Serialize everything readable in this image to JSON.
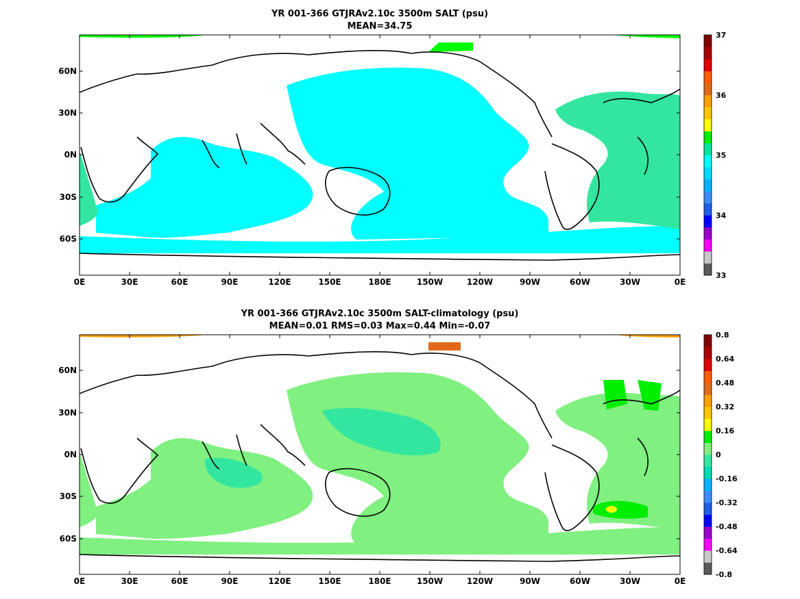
{
  "panels": [
    {
      "title": "YR 001-366 GTJRAv2.10c 3500m SALT (psu)",
      "subtitle": "MEAN=34.75",
      "colorbar": {
        "labels": [
          "37",
          "36",
          "35",
          "34",
          "33"
        ],
        "colors": [
          "#5a5a5a",
          "#c8c8c8",
          "#ff00ff",
          "#9900cc",
          "#0000ff",
          "#1d5fe6",
          "#3c8cff",
          "#00b4ff",
          "#00dcff",
          "#00ffff",
          "#00e6a0",
          "#00ee00",
          "#ffff00",
          "#ffc800",
          "#ffa000",
          "#e06a1a",
          "#ff5a00",
          "#e00000",
          "#aa0000",
          "#800000"
        ]
      },
      "fill": {
        "primary": "#00ffff",
        "secondary": "#33e6a0",
        "accent": "#00ff00"
      }
    },
    {
      "title": "YR 001-366 GTJRAv2.10c 3500m SALT-climatology (psu)",
      "subtitle": "MEAN=0.01   RMS=0.03   Max=0.44   Min=-0.07",
      "colorbar": {
        "labels": [
          "0.8",
          "0.64",
          "0.48",
          "0.32",
          "0.16",
          "0",
          "-0.16",
          "-0.32",
          "-0.48",
          "-0.64",
          "-0.8"
        ],
        "colors": [
          "#5a5a5a",
          "#c8c8c8",
          "#ff00ff",
          "#9900cc",
          "#0000ff",
          "#1d5fe6",
          "#3c8cff",
          "#00b4ff",
          "#00dcb4",
          "#33e6a0",
          "#80f080",
          "#00ee00",
          "#ffff00",
          "#ffc800",
          "#ffa000",
          "#e06a1a",
          "#ff5a00",
          "#e00000",
          "#aa0000",
          "#800000"
        ]
      },
      "fill": {
        "primary": "#80f080",
        "secondary": "#33e6a0",
        "accent": "#00ee00"
      }
    }
  ],
  "axes": {
    "x_labels": [
      "0E",
      "30E",
      "60E",
      "90E",
      "120E",
      "150E",
      "180E",
      "150W",
      "120W",
      "90W",
      "60W",
      "30W",
      "0E"
    ],
    "y_labels": [
      "60N",
      "30N",
      "0N",
      "30S",
      "60S"
    ]
  }
}
